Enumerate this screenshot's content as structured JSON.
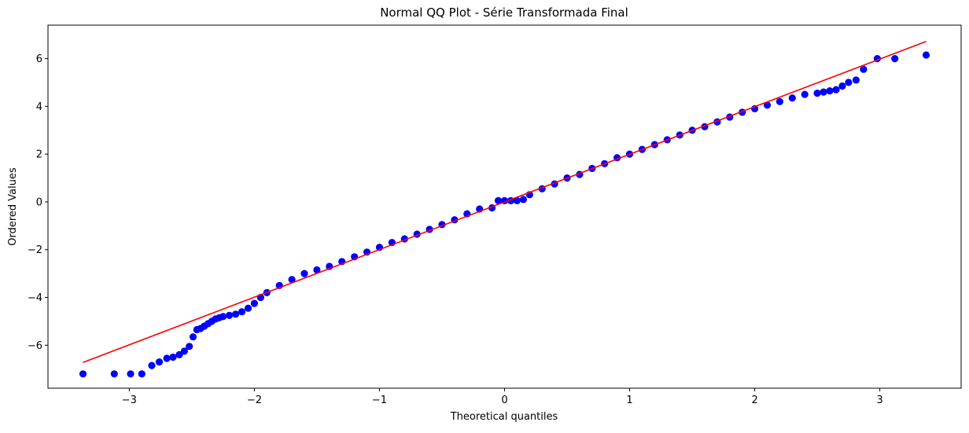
{
  "chart_data": {
    "type": "scatter",
    "title": "Normal QQ Plot - Série Transformada Final",
    "xlabel": "Theoretical quantiles",
    "ylabel": "Ordered Values",
    "xlim": [
      -3.65,
      3.65
    ],
    "ylim": [
      -7.8,
      7.4
    ],
    "xticks": [
      -3,
      -2,
      -1,
      0,
      1,
      2,
      3
    ],
    "xtick_labels": [
      "−3",
      "−2",
      "−1",
      "0",
      "1",
      "2",
      "3"
    ],
    "yticks": [
      -6,
      -4,
      -2,
      0,
      2,
      4,
      6
    ],
    "ytick_labels": [
      "−6",
      "−4",
      "−2",
      "0",
      "2",
      "4",
      "6"
    ],
    "grid": false,
    "legend": "none",
    "colors": {
      "points": "#0000ff",
      "fit_line": "#ff0000"
    },
    "fit_line": {
      "x": [
        -3.37,
        3.37
      ],
      "y": [
        -6.72,
        6.72
      ]
    },
    "points": {
      "x": [
        -3.37,
        -3.12,
        -2.99,
        -2.9,
        -2.82,
        -2.76,
        -2.7,
        -2.65,
        -2.6,
        -2.56,
        -2.52,
        -2.49,
        -2.46,
        -2.43,
        -2.4,
        -2.37,
        -2.34,
        -2.31,
        -2.28,
        -2.25,
        -2.2,
        -2.15,
        -2.1,
        -2.05,
        -2.0,
        -1.95,
        -1.9,
        -1.8,
        -1.7,
        -1.6,
        -1.5,
        -1.4,
        -1.3,
        -1.2,
        -1.1,
        -1.0,
        -0.9,
        -0.8,
        -0.7,
        -0.6,
        -0.5,
        -0.4,
        -0.3,
        -0.2,
        -0.1,
        -0.05,
        0.0,
        0.05,
        0.1,
        0.15,
        0.2,
        0.3,
        0.4,
        0.5,
        0.6,
        0.7,
        0.8,
        0.9,
        1.0,
        1.1,
        1.2,
        1.3,
        1.4,
        1.5,
        1.6,
        1.7,
        1.8,
        1.9,
        2.0,
        2.1,
        2.2,
        2.3,
        2.4,
        2.5,
        2.55,
        2.6,
        2.65,
        2.7,
        2.75,
        2.81,
        2.87,
        2.98,
        3.12,
        3.37
      ],
      "y": [
        -7.2,
        -7.2,
        -7.2,
        -7.2,
        -6.85,
        -6.7,
        -6.55,
        -6.5,
        -6.4,
        -6.25,
        -6.05,
        -5.65,
        -5.35,
        -5.3,
        -5.2,
        -5.1,
        -5.0,
        -4.9,
        -4.85,
        -4.8,
        -4.75,
        -4.7,
        -4.6,
        -4.45,
        -4.25,
        -4.0,
        -3.8,
        -3.5,
        -3.25,
        -3.0,
        -2.85,
        -2.7,
        -2.5,
        -2.3,
        -2.1,
        -1.9,
        -1.7,
        -1.55,
        -1.35,
        -1.15,
        -0.95,
        -0.75,
        -0.5,
        -0.3,
        -0.25,
        0.05,
        0.05,
        0.05,
        0.05,
        0.1,
        0.3,
        0.55,
        0.75,
        1.0,
        1.15,
        1.4,
        1.6,
        1.85,
        2.0,
        2.2,
        2.4,
        2.6,
        2.8,
        3.0,
        3.15,
        3.35,
        3.55,
        3.75,
        3.9,
        4.05,
        4.2,
        4.35,
        4.5,
        4.55,
        4.6,
        4.65,
        4.7,
        4.85,
        5.0,
        5.1,
        5.55,
        6.0,
        6.0,
        6.15
      ]
    }
  }
}
